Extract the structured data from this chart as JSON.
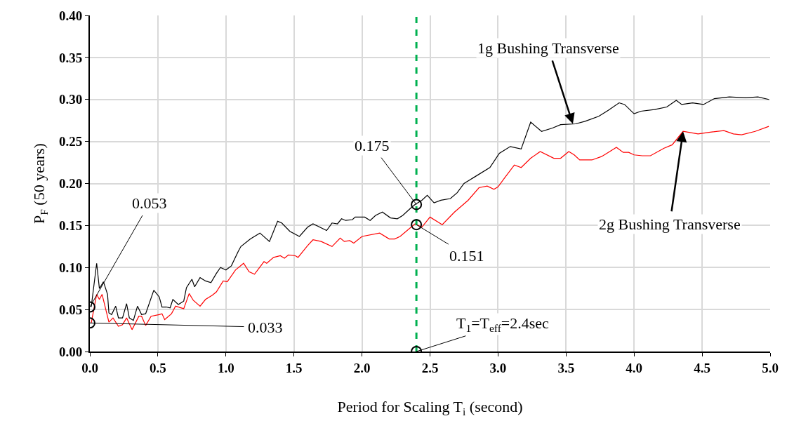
{
  "chart_data": {
    "type": "line",
    "xlabel": "Period for Scaling T$_{i}$ (second)",
    "ylabel": "P$_{F}$ (50 years)",
    "series": [
      {
        "color": "#000000",
        "x": [
          0.01,
          0.05,
          0.07,
          0.1,
          0.13,
          0.14,
          0.16,
          0.19,
          0.21,
          0.24,
          0.27,
          0.29,
          0.32,
          0.35,
          0.38,
          0.41,
          0.47,
          0.51,
          0.53,
          0.56,
          0.59,
          0.61,
          0.65,
          0.69,
          0.71,
          0.75,
          0.77,
          0.81,
          0.85,
          0.89,
          0.93,
          0.96,
          1.0,
          1.04,
          1.09,
          1.11,
          1.18,
          1.25,
          1.32,
          1.38,
          1.41,
          1.47,
          1.54,
          1.6,
          1.64,
          1.74,
          1.78,
          1.82,
          1.85,
          1.88,
          1.93,
          1.95,
          2.02,
          2.06,
          2.1,
          2.15,
          2.21,
          2.26,
          2.3,
          2.36,
          2.39,
          2.44,
          2.48,
          2.53,
          2.58,
          2.65,
          2.7,
          2.75,
          2.82,
          2.94,
          3.01,
          3.09,
          3.17,
          3.24,
          3.32,
          3.4,
          3.46,
          3.57,
          3.64,
          3.74,
          3.81,
          3.89,
          3.93,
          4.0,
          4.05,
          4.15,
          4.24,
          4.31,
          4.35,
          4.43,
          4.51,
          4.59,
          4.7,
          4.82,
          4.91,
          4.99
        ],
        "values": [
          0.053,
          0.105,
          0.075,
          0.083,
          0.068,
          0.046,
          0.044,
          0.054,
          0.04,
          0.04,
          0.057,
          0.04,
          0.037,
          0.054,
          0.044,
          0.045,
          0.073,
          0.065,
          0.053,
          0.053,
          0.052,
          0.062,
          0.056,
          0.06,
          0.076,
          0.086,
          0.077,
          0.088,
          0.084,
          0.082,
          0.093,
          0.1,
          0.097,
          0.102,
          0.119,
          0.125,
          0.134,
          0.141,
          0.131,
          0.155,
          0.153,
          0.143,
          0.137,
          0.148,
          0.152,
          0.144,
          0.153,
          0.152,
          0.158,
          0.156,
          0.157,
          0.16,
          0.16,
          0.156,
          0.162,
          0.166,
          0.159,
          0.158,
          0.162,
          0.171,
          0.175,
          0.18,
          0.186,
          0.177,
          0.18,
          0.182,
          0.189,
          0.2,
          0.207,
          0.219,
          0.236,
          0.244,
          0.241,
          0.273,
          0.262,
          0.266,
          0.27,
          0.271,
          0.274,
          0.28,
          0.287,
          0.296,
          0.294,
          0.283,
          0.286,
          0.288,
          0.291,
          0.299,
          0.294,
          0.296,
          0.294,
          0.301,
          0.303,
          0.302,
          0.303,
          0.3
        ]
      },
      {
        "color": "#ff0000",
        "x": [
          0.01,
          0.05,
          0.07,
          0.09,
          0.14,
          0.17,
          0.21,
          0.24,
          0.27,
          0.31,
          0.36,
          0.38,
          0.41,
          0.45,
          0.51,
          0.53,
          0.55,
          0.6,
          0.63,
          0.69,
          0.73,
          0.76,
          0.81,
          0.85,
          0.9,
          0.93,
          0.98,
          1.01,
          1.07,
          1.13,
          1.17,
          1.21,
          1.28,
          1.3,
          1.35,
          1.4,
          1.43,
          1.46,
          1.51,
          1.53,
          1.6,
          1.64,
          1.7,
          1.78,
          1.84,
          1.87,
          1.91,
          1.94,
          2.0,
          2.13,
          2.2,
          2.24,
          2.28,
          2.39,
          2.44,
          2.5,
          2.59,
          2.68,
          2.78,
          2.86,
          2.92,
          2.97,
          3.0,
          3.05,
          3.12,
          3.17,
          3.24,
          3.31,
          3.41,
          3.46,
          3.52,
          3.56,
          3.6,
          3.69,
          3.76,
          3.8,
          3.87,
          3.92,
          3.96,
          4.0,
          4.06,
          4.12,
          4.22,
          4.28,
          4.36,
          4.47,
          4.56,
          4.66,
          4.73,
          4.79,
          4.89,
          4.99
        ],
        "values": [
          0.034,
          0.068,
          0.062,
          0.068,
          0.035,
          0.04,
          0.03,
          0.032,
          0.04,
          0.026,
          0.042,
          0.042,
          0.031,
          0.042,
          0.044,
          0.045,
          0.038,
          0.045,
          0.054,
          0.051,
          0.069,
          0.061,
          0.054,
          0.062,
          0.067,
          0.071,
          0.084,
          0.083,
          0.097,
          0.105,
          0.095,
          0.092,
          0.107,
          0.105,
          0.112,
          0.114,
          0.111,
          0.115,
          0.114,
          0.112,
          0.126,
          0.133,
          0.131,
          0.125,
          0.135,
          0.131,
          0.132,
          0.129,
          0.137,
          0.141,
          0.134,
          0.134,
          0.137,
          0.152,
          0.148,
          0.16,
          0.151,
          0.166,
          0.18,
          0.195,
          0.197,
          0.193,
          0.196,
          0.207,
          0.222,
          0.219,
          0.23,
          0.238,
          0.23,
          0.23,
          0.238,
          0.234,
          0.228,
          0.228,
          0.232,
          0.236,
          0.243,
          0.237,
          0.237,
          0.234,
          0.233,
          0.233,
          0.242,
          0.246,
          0.262,
          0.259,
          0.261,
          0.263,
          0.259,
          0.258,
          0.262,
          0.268
        ]
      }
    ],
    "xlim": [
      0,
      5
    ],
    "xticks": [
      {
        "value": 0,
        "label": "0.0"
      },
      {
        "value": 0.5,
        "label": "0.5"
      },
      {
        "value": 1,
        "label": "1.0"
      },
      {
        "value": 1.5,
        "label": "1.5"
      },
      {
        "value": 2,
        "label": "2.0"
      },
      {
        "value": 2.5,
        "label": "2.5"
      },
      {
        "value": 3,
        "label": "3.0"
      },
      {
        "value": 3.5,
        "label": "3.5"
      },
      {
        "value": 4,
        "label": "4.0"
      },
      {
        "value": 4.5,
        "label": "4.5"
      },
      {
        "value": 5,
        "label": "5.0"
      }
    ],
    "ylim": [
      0,
      0.4
    ],
    "yticks": [
      {
        "value": 0,
        "label": "0.00"
      },
      {
        "value": 0.05,
        "label": "0.05"
      },
      {
        "value": 0.1,
        "label": "0.10"
      },
      {
        "value": 0.15,
        "label": "0.15"
      },
      {
        "value": 0.2,
        "label": "0.20"
      },
      {
        "value": 0.25,
        "label": "0.25"
      },
      {
        "value": 0.3,
        "label": "0.30"
      },
      {
        "value": 0.35,
        "label": "0.35"
      },
      {
        "value": 0.4,
        "label": "0.40"
      }
    ],
    "grid": true,
    "marker": "none",
    "line_style": "solid",
    "ref_lines": [
      {
        "axis": "x",
        "value": 2.4,
        "color": "#00b050",
        "line_style": "dashed"
      }
    ],
    "annotations": [
      {
        "text": "0.053",
        "x": 0,
        "y": 0.053
      },
      {
        "text": "0.033",
        "x": 0,
        "y": 0.034
      },
      {
        "text": "0.175",
        "x": 2.4,
        "y": 0.175
      },
      {
        "text": "0.151",
        "x": 2.4,
        "y": 0.151
      },
      {
        "text": "T$_{1}$=T$_{eff}$=2.4sec",
        "x": 2.4,
        "y": 0
      },
      {
        "text": "1g Bushing Transverse",
        "x": 3.55,
        "y": 0.271
      },
      {
        "text": "2g Bushing Transverse",
        "x": 4.36,
        "y": 0.262
      }
    ]
  }
}
